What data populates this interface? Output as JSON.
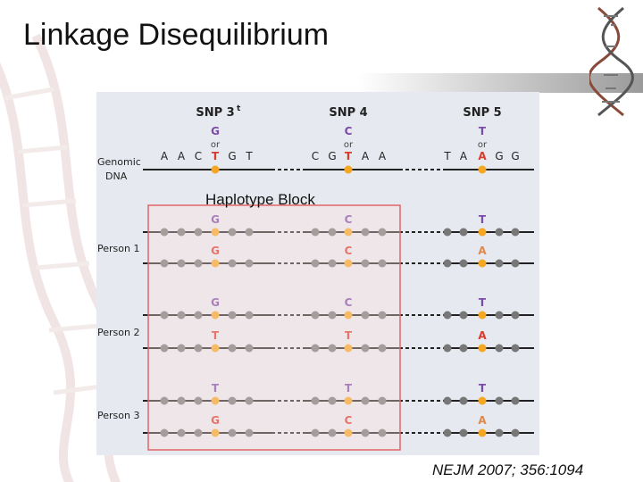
{
  "title": "Linkage Disequilibrium",
  "citation": "NEJM 2007; 356:1094",
  "haplotype_block_label": "Haplotype Block",
  "colors": {
    "panel_bg": "#e6e9ef",
    "line": "#222222",
    "dot_gray": "#777777",
    "dot_snp": "#f5a623",
    "allele_purple": "#7b4aa6",
    "allele_red": "#d93a2a",
    "allele_orange": "#e0894a",
    "block_border": "#e06666"
  },
  "snp_headers": [
    {
      "label": "SNP 3",
      "sup": "t"
    },
    {
      "label": "SNP 4",
      "sup": ""
    },
    {
      "label": "SNP 5",
      "sup": ""
    }
  ],
  "genomic": {
    "label_lines": [
      "Genomic",
      "DNA"
    ],
    "or_word": "or",
    "snps": [
      {
        "top": "G",
        "bottom": "T",
        "bases_before": [
          "A",
          "A",
          "C"
        ],
        "bases_after": [
          "G",
          "T"
        ]
      },
      {
        "top": "C",
        "bottom": "T",
        "bases_before": [
          "C",
          "G"
        ],
        "bases_after": [
          "A",
          "A"
        ]
      },
      {
        "top": "T",
        "bottom": "A",
        "bases_before": [
          "T",
          "A"
        ],
        "bases_after": [
          "G",
          "G"
        ]
      }
    ]
  },
  "persons": [
    {
      "label": "Person 1",
      "strands": [
        [
          "G",
          "C",
          "T"
        ],
        [
          "G",
          "C",
          "A"
        ]
      ]
    },
    {
      "label": "Person 2",
      "strands": [
        [
          "G",
          "C",
          "T"
        ],
        [
          "T",
          "T",
          "A"
        ]
      ]
    },
    {
      "label": "Person 3",
      "strands": [
        [
          "T",
          "T",
          "T"
        ],
        [
          "G",
          "C",
          "A"
        ]
      ]
    }
  ]
}
